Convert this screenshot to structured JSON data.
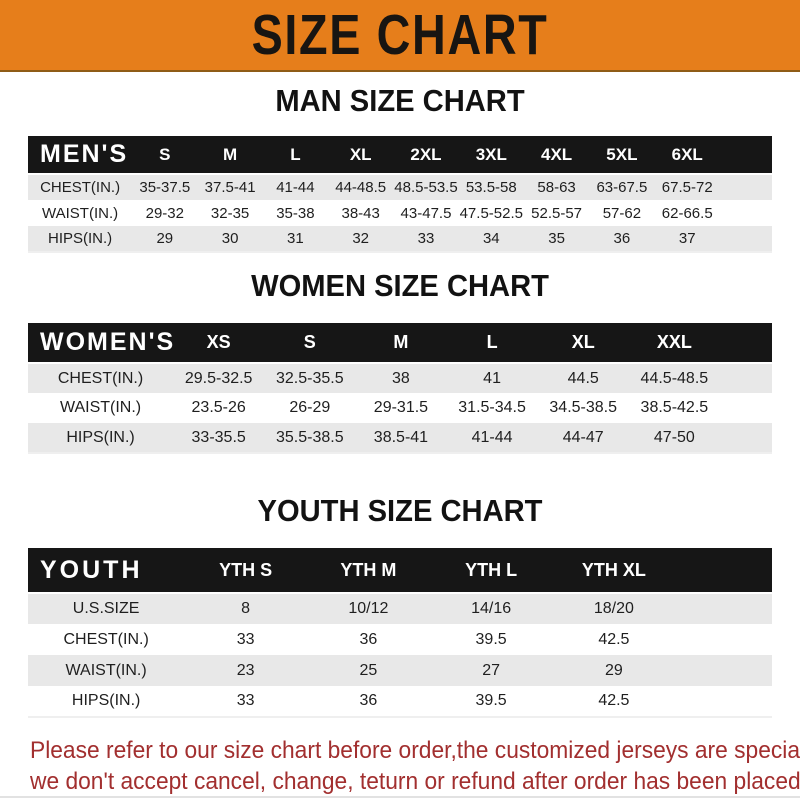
{
  "banner": {
    "title": "SIZE CHART",
    "bg_color": "#E67E1B",
    "text_color": "#181512"
  },
  "sections": [
    {
      "title": "MAN SIZE CHART",
      "header_label": "MEN'S",
      "columns": [
        "S",
        "M",
        "L",
        "XL",
        "2XL",
        "3XL",
        "4XL",
        "5XL",
        "6XL"
      ],
      "rows": [
        {
          "label": "CHEST(IN.)",
          "values": [
            "35-37.5",
            "37.5-41",
            "41-44",
            "44-48.5",
            "48.5-53.5",
            "53.5-58",
            "58-63",
            "63-67.5",
            "67.5-72"
          ]
        },
        {
          "label": "WAIST(IN.)",
          "values": [
            "29-32",
            "32-35",
            "35-38",
            "38-43",
            "43-47.5",
            "47.5-52.5",
            "52.5-57",
            "57-62",
            "62-66.5"
          ]
        },
        {
          "label": "HIPS(IN.)",
          "values": [
            "29",
            "30",
            "31",
            "32",
            "33",
            "34",
            "35",
            "36",
            "37"
          ]
        }
      ]
    },
    {
      "title": "WOMEN SIZE CHART",
      "header_label": "WOMEN'S",
      "columns": [
        "XS",
        "S",
        "M",
        "L",
        "XL",
        "XXL"
      ],
      "rows": [
        {
          "label": "CHEST(IN.)",
          "values": [
            "29.5-32.5",
            "32.5-35.5",
            "38",
            "41",
            "44.5",
            "44.5-48.5"
          ]
        },
        {
          "label": "WAIST(IN.)",
          "values": [
            "23.5-26",
            "26-29",
            "29-31.5",
            "31.5-34.5",
            "34.5-38.5",
            "38.5-42.5"
          ]
        },
        {
          "label": "HIPS(IN.)",
          "values": [
            "33-35.5",
            "35.5-38.5",
            "38.5-41",
            "41-44",
            "44-47",
            "47-50"
          ]
        }
      ]
    },
    {
      "title": "YOUTH SIZE CHART",
      "header_label": "YOUTH",
      "columns": [
        "YTH S",
        "YTH M",
        "YTH L",
        "YTH XL"
      ],
      "rows": [
        {
          "label": "U.S.SIZE",
          "values": [
            "8",
            "10/12",
            "14/16",
            "18/20"
          ]
        },
        {
          "label": "CHEST(IN.)",
          "values": [
            "33",
            "36",
            "39.5",
            "42.5"
          ]
        },
        {
          "label": "WAIST(IN.)",
          "values": [
            "23",
            "25",
            "27",
            "29"
          ]
        },
        {
          "label": "HIPS(IN.)",
          "values": [
            "33",
            "36",
            "39.5",
            "42.5"
          ]
        }
      ]
    }
  ],
  "footer": {
    "line1": "Please refer to our size chart before order,the customized jerseys are special products,",
    "line2": "we don't accept cancel, change, teturn or refund after order has been placed!",
    "text_color": "#A22F2F"
  },
  "colors": {
    "header_bar_bg": "#161616",
    "header_bar_text": "#ffffff",
    "striped_row_bg": "#e8e8e8",
    "body_text": "#1f1f1f"
  }
}
